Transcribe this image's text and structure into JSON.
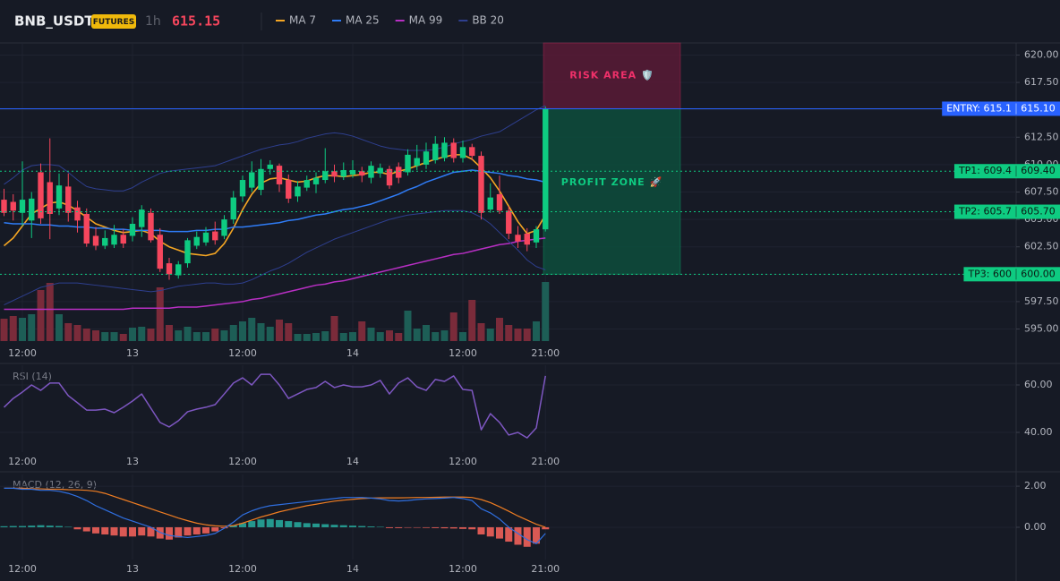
{
  "header": {
    "symbol": "BNB_USDT",
    "badge": "FUTURES",
    "interval": "1h",
    "price": 615.15
  },
  "chart_data": [
    {
      "type": "candlestick",
      "categories": [
        null,
        null,
        "12:00",
        null,
        null,
        null,
        null,
        null,
        null,
        null,
        null,
        null,
        null,
        null,
        "13",
        null,
        null,
        null,
        null,
        null,
        null,
        null,
        null,
        null,
        null,
        null,
        "12:00",
        null,
        null,
        null,
        null,
        null,
        null,
        null,
        null,
        null,
        null,
        null,
        "14",
        null,
        null,
        null,
        null,
        null,
        null,
        null,
        null,
        null,
        null,
        null,
        "12:00",
        null,
        null,
        null,
        null,
        null,
        null,
        null,
        null,
        "21:00"
      ],
      "open": [
        606.8,
        606.6,
        605.6,
        604.9,
        609.3,
        608.4,
        606.0,
        608.0,
        606.1,
        605.5,
        603.5,
        602.6,
        602.7,
        603.6,
        603.5,
        604.3,
        605.6,
        603.6,
        601.0,
        599.9,
        601.0,
        602.6,
        602.9,
        603.9,
        603.5,
        605.0,
        607.1,
        607.9,
        607.7,
        609.6,
        609.9,
        608.6,
        607.1,
        607.9,
        608.2,
        608.6,
        609.4,
        608.9,
        609.1,
        609.4,
        608.8,
        609.2,
        609.6,
        609.8,
        609.3,
        609.9,
        610.0,
        610.4,
        610.6,
        612.0,
        610.6,
        611.6,
        610.8,
        605.9,
        607.3,
        605.8,
        603.6,
        603.7,
        602.9,
        604.1
      ],
      "high": [
        607.8,
        607.3,
        610.3,
        607.5,
        610.1,
        612.4,
        609.2,
        609.2,
        606.7,
        606.0,
        604.3,
        604.0,
        604.5,
        604.1,
        605.2,
        606.3,
        606.0,
        604.2,
        601.5,
        601.2,
        603.3,
        603.9,
        604.3,
        604.8,
        605.4,
        607.6,
        609.0,
        610.3,
        610.5,
        610.4,
        610.1,
        609.1,
        608.5,
        609.0,
        609.3,
        611.5,
        610.0,
        610.2,
        610.4,
        609.8,
        610.3,
        610.1,
        609.9,
        610.2,
        611.4,
        611.8,
        612.0,
        612.6,
        612.5,
        612.4,
        612.2,
        611.9,
        611.2,
        608.3,
        609.0,
        606.2,
        604.4,
        604.2,
        604.4,
        615.3
      ],
      "low": [
        605.3,
        604.9,
        604.4,
        603.3,
        604.6,
        603.2,
        605.4,
        604.8,
        603.8,
        602.5,
        602.2,
        602.3,
        602.4,
        602.4,
        603.0,
        603.4,
        602.9,
        600.2,
        599.5,
        599.6,
        600.6,
        602.3,
        602.6,
        602.7,
        603.2,
        604.6,
        606.6,
        607.5,
        607.2,
        609.1,
        607.5,
        606.5,
        606.6,
        607.6,
        607.4,
        608.3,
        608.4,
        608.6,
        608.8,
        608.4,
        608.3,
        608.8,
        607.8,
        608.3,
        609.0,
        609.5,
        609.6,
        610.1,
        610.3,
        610.2,
        610.2,
        610.4,
        605.0,
        605.6,
        605.5,
        603.2,
        602.4,
        602.1,
        602.4,
        603.9
      ],
      "close": [
        605.6,
        605.8,
        606.8,
        606.9,
        605.1,
        605.5,
        608.1,
        605.6,
        604.9,
        602.8,
        602.6,
        603.3,
        603.6,
        602.8,
        604.6,
        605.9,
        603.1,
        600.5,
        600.0,
        600.9,
        603.1,
        603.4,
        603.8,
        603.1,
        605.0,
        607.0,
        608.6,
        609.3,
        609.6,
        610.0,
        608.2,
        606.9,
        608.0,
        608.6,
        608.8,
        609.4,
        608.9,
        609.5,
        609.5,
        609.0,
        609.9,
        609.7,
        608.1,
        608.8,
        610.9,
        610.6,
        611.2,
        611.9,
        612.0,
        610.6,
        611.6,
        610.8,
        605.6,
        607.0,
        605.8,
        603.7,
        603.0,
        602.7,
        604.1,
        615.1
      ],
      "volume": [
        25,
        28,
        26,
        30,
        57,
        65,
        30,
        20,
        18,
        14,
        12,
        10,
        10,
        8,
        15,
        16,
        14,
        60,
        18,
        12,
        16,
        10,
        10,
        14,
        12,
        18,
        22,
        26,
        20,
        16,
        24,
        20,
        8,
        8,
        9,
        11,
        28,
        9,
        10,
        22,
        15,
        10,
        12,
        9,
        34,
        14,
        18,
        10,
        12,
        32,
        10,
        46,
        20,
        14,
        26,
        18,
        14,
        14,
        22,
        66
      ],
      "up_color": "#0ecb81",
      "down_color": "#f6465d",
      "volume_up_color": "#1d5e56",
      "volume_down_color": "#7a2b3a",
      "overlays": [
        {
          "name": "MA 7",
          "color": "#f5a623",
          "values": [
            602.6,
            603.3,
            604.4,
            605.5,
            606.0,
            606.5,
            606.6,
            606.3,
            605.8,
            605.2,
            604.6,
            604.3,
            604.0,
            603.8,
            603.9,
            604.0,
            603.7,
            603.0,
            602.5,
            602.2,
            601.9,
            601.8,
            601.7,
            601.9,
            602.8,
            604.2,
            605.9,
            607.3,
            608.3,
            608.7,
            608.8,
            608.6,
            608.4,
            608.5,
            608.8,
            609.0,
            609.0,
            608.9,
            609.0,
            609.1,
            609.3,
            609.3,
            609.1,
            609.4,
            609.6,
            609.9,
            610.2,
            610.5,
            610.7,
            610.9,
            610.9,
            610.5,
            609.7,
            608.8,
            607.6,
            606.2,
            604.8,
            603.7,
            604.0,
            605.4
          ]
        },
        {
          "name": "MA 25",
          "color": "#2f7cf6",
          "values": [
            604.7,
            604.6,
            604.6,
            604.6,
            604.5,
            604.5,
            604.4,
            604.4,
            604.3,
            604.3,
            604.2,
            604.2,
            604.1,
            604.1,
            604.0,
            604.0,
            604.0,
            604.0,
            603.9,
            603.9,
            603.9,
            604.0,
            604.0,
            604.1,
            604.1,
            604.3,
            604.3,
            604.4,
            604.5,
            604.6,
            604.7,
            604.9,
            605.0,
            605.2,
            605.4,
            605.5,
            605.7,
            605.9,
            606.0,
            606.2,
            606.4,
            606.7,
            607.0,
            607.3,
            607.7,
            608.0,
            608.4,
            608.7,
            609.0,
            609.3,
            609.4,
            609.5,
            609.4,
            609.3,
            609.2,
            609.0,
            608.9,
            608.7,
            608.6,
            608.4
          ]
        },
        {
          "name": "MA 99",
          "color": "#b82fc4",
          "values": [
            596.8,
            596.8,
            596.8,
            596.8,
            596.8,
            596.8,
            596.8,
            596.8,
            596.8,
            596.8,
            596.8,
            596.8,
            596.8,
            596.8,
            596.9,
            596.9,
            596.9,
            596.9,
            596.9,
            597.0,
            597.0,
            597.0,
            597.1,
            597.2,
            597.3,
            597.4,
            597.5,
            597.7,
            597.8,
            598.0,
            598.2,
            598.4,
            598.6,
            598.8,
            599.0,
            599.1,
            599.3,
            599.4,
            599.6,
            599.8,
            600.0,
            600.2,
            600.4,
            600.6,
            600.8,
            601.0,
            601.2,
            601.4,
            601.6,
            601.8,
            601.9,
            602.1,
            602.3,
            602.5,
            602.7,
            602.8,
            603.0,
            603.1,
            603.2,
            603.3
          ]
        },
        {
          "name": "BB 20",
          "color": "#2e3f8f",
          "upper": [
            608.2,
            608.8,
            609.5,
            609.9,
            610.0,
            610.0,
            609.9,
            609.3,
            608.6,
            608.0,
            607.8,
            607.7,
            607.6,
            607.6,
            607.9,
            608.4,
            608.8,
            609.2,
            609.4,
            609.5,
            609.6,
            609.7,
            609.8,
            609.9,
            610.2,
            610.5,
            610.8,
            611.1,
            611.4,
            611.6,
            611.8,
            611.9,
            612.1,
            612.4,
            612.6,
            612.8,
            612.9,
            612.8,
            612.6,
            612.3,
            612.0,
            611.7,
            611.5,
            611.4,
            611.3,
            611.3,
            611.3,
            611.4,
            611.6,
            611.9,
            612.1,
            612.3,
            612.6,
            612.8,
            613.0,
            613.5,
            614.0,
            614.5,
            615.0,
            615.4
          ],
          "lower": [
            597.2,
            597.6,
            598.0,
            598.4,
            598.8,
            599.0,
            599.2,
            599.2,
            599.2,
            599.1,
            599.0,
            598.9,
            598.8,
            598.7,
            598.6,
            598.5,
            598.4,
            598.5,
            598.7,
            598.9,
            599.0,
            599.1,
            599.2,
            599.2,
            599.1,
            599.1,
            599.2,
            599.5,
            599.9,
            600.3,
            600.6,
            601.0,
            601.5,
            602.0,
            602.4,
            602.8,
            603.2,
            603.5,
            603.8,
            604.1,
            604.4,
            604.7,
            605.0,
            605.2,
            605.4,
            605.5,
            605.6,
            605.7,
            605.8,
            605.8,
            605.8,
            605.6,
            605.2,
            604.6,
            603.8,
            603.0,
            602.2,
            601.3,
            600.7,
            600.4
          ]
        }
      ],
      "levels": [
        {
          "value": 615.1,
          "label": "ENTRY: 615.1",
          "price_label": "615.10",
          "color": "#2962ff",
          "style": "solid"
        },
        {
          "value": 609.4,
          "label": "TP1: 609.4",
          "price_label": "609.40",
          "color": "#0ecb81",
          "style": "dotted"
        },
        {
          "value": 605.7,
          "label": "TP2: 605.7",
          "price_label": "605.70",
          "color": "#0ecb81",
          "style": "dotted"
        },
        {
          "value": 600,
          "label": "TP3: 600",
          "price_label": "600.00",
          "color": "#0ecb81",
          "style": "dotted"
        }
      ],
      "zones": [
        {
          "label": "RISK AREA 🛡️",
          "range": [
            615.1,
            621.1
          ],
          "color": "#5a1a36",
          "text_color": "#f0306a"
        },
        {
          "label": "PROFIT ZONE 🚀",
          "range": [
            600,
            615.1
          ],
          "color": "#0d4d3c",
          "text_color": "#0ecb81"
        }
      ],
      "ylim": [
        593.9,
        621.1
      ],
      "yticks": [
        {
          "value": 620,
          "label": "620.00"
        },
        {
          "value": 617.5,
          "label": "617.50"
        },
        {
          "value": 615,
          "label": "615.00"
        },
        {
          "value": 612.5,
          "label": "612.50"
        },
        {
          "value": 610,
          "label": "610.00"
        },
        {
          "value": 607.5,
          "label": "607.50"
        },
        {
          "value": 605,
          "label": "605.00"
        },
        {
          "value": 602.5,
          "label": "602.50"
        },
        {
          "value": 600,
          "label": "600.00"
        },
        {
          "value": 597.5,
          "label": "597.50"
        },
        {
          "value": 595,
          "label": "595.00"
        }
      ],
      "grid": true
    },
    {
      "type": "line",
      "label": "RSI (14)",
      "color": "#7e57c2",
      "categories": [
        null,
        null,
        "12:00",
        null,
        null,
        null,
        null,
        null,
        null,
        null,
        null,
        null,
        null,
        null,
        "13",
        null,
        null,
        null,
        null,
        null,
        null,
        null,
        null,
        null,
        null,
        null,
        "12:00",
        null,
        null,
        null,
        null,
        null,
        null,
        null,
        null,
        null,
        null,
        null,
        "14",
        null,
        null,
        null,
        null,
        null,
        null,
        null,
        null,
        null,
        null,
        null,
        "12:00",
        null,
        null,
        null,
        null,
        null,
        null,
        null,
        null,
        "21:00"
      ],
      "values": [
        50.6,
        54.3,
        57.0,
        60.0,
        57.7,
        60.8,
        60.8,
        55.5,
        52.5,
        49.4,
        49.4,
        49.8,
        48.3,
        50.6,
        53.2,
        56.2,
        50.2,
        44.2,
        42.3,
        44.9,
        48.7,
        49.8,
        50.6,
        51.7,
        56.2,
        60.8,
        63.0,
        60.0,
        64.5,
        64.5,
        60.0,
        54.3,
        56.2,
        58.1,
        58.9,
        61.5,
        58.9,
        60.0,
        59.2,
        59.2,
        60.0,
        61.9,
        56.2,
        60.8,
        63.0,
        59.2,
        57.7,
        62.3,
        61.5,
        63.8,
        58.1,
        57.7,
        41.1,
        47.9,
        44.2,
        38.9,
        40.0,
        37.7,
        41.9,
        63.8
      ],
      "ylim": [
        31.7,
        68.3
      ],
      "yticks": [
        {
          "value": 60,
          "label": "60.00"
        },
        {
          "value": 40,
          "label": "40.00"
        }
      ],
      "grid": true
    },
    {
      "type": "macd",
      "label": "MACD (12, 26, 9)",
      "categories": [
        null,
        null,
        "12:00",
        null,
        null,
        null,
        null,
        null,
        null,
        null,
        null,
        null,
        null,
        null,
        "13",
        null,
        null,
        null,
        null,
        null,
        null,
        null,
        null,
        null,
        null,
        null,
        "12:00",
        null,
        null,
        null,
        null,
        null,
        null,
        null,
        null,
        null,
        null,
        null,
        "14",
        null,
        null,
        null,
        null,
        null,
        null,
        null,
        null,
        null,
        null,
        null,
        "12:00",
        null,
        null,
        null,
        null,
        null,
        null,
        null,
        null,
        "21:00"
      ],
      "histogram": [
        0.05,
        0.06,
        0.06,
        0.08,
        0.1,
        0.08,
        0.06,
        0.02,
        -0.1,
        -0.2,
        -0.3,
        -0.35,
        -0.4,
        -0.45,
        -0.45,
        -0.4,
        -0.45,
        -0.55,
        -0.6,
        -0.5,
        -0.4,
        -0.35,
        -0.3,
        -0.2,
        -0.05,
        0.1,
        0.2,
        0.3,
        0.38,
        0.4,
        0.35,
        0.3,
        0.25,
        0.2,
        0.18,
        0.15,
        0.12,
        0.1,
        0.08,
        0.06,
        0.04,
        0.02,
        -0.04,
        -0.04,
        -0.02,
        -0.02,
        -0.03,
        -0.04,
        -0.05,
        -0.06,
        -0.08,
        -0.1,
        -0.35,
        -0.45,
        -0.55,
        -0.7,
        -0.85,
        -0.95,
        -0.8,
        -0.1
      ],
      "macd": [
        1.9,
        1.9,
        1.85,
        1.85,
        1.8,
        1.8,
        1.75,
        1.65,
        1.5,
        1.3,
        1.05,
        0.85,
        0.65,
        0.45,
        0.3,
        0.15,
        0.0,
        -0.25,
        -0.4,
        -0.45,
        -0.5,
        -0.45,
        -0.4,
        -0.3,
        -0.05,
        0.25,
        0.6,
        0.8,
        0.95,
        1.05,
        1.1,
        1.15,
        1.2,
        1.25,
        1.3,
        1.35,
        1.4,
        1.45,
        1.45,
        1.45,
        1.42,
        1.38,
        1.3,
        1.28,
        1.3,
        1.35,
        1.38,
        1.4,
        1.42,
        1.45,
        1.4,
        1.3,
        0.9,
        0.7,
        0.4,
        0.0,
        -0.3,
        -0.6,
        -0.8,
        -0.3
      ],
      "signal": [
        1.9,
        1.9,
        1.9,
        1.88,
        1.87,
        1.85,
        1.85,
        1.83,
        1.82,
        1.8,
        1.75,
        1.65,
        1.5,
        1.35,
        1.2,
        1.05,
        0.9,
        0.75,
        0.6,
        0.45,
        0.32,
        0.2,
        0.12,
        0.07,
        0.05,
        0.08,
        0.2,
        0.35,
        0.5,
        0.62,
        0.75,
        0.85,
        0.95,
        1.05,
        1.12,
        1.2,
        1.27,
        1.32,
        1.36,
        1.4,
        1.42,
        1.43,
        1.43,
        1.43,
        1.44,
        1.45,
        1.45,
        1.46,
        1.47,
        1.47,
        1.47,
        1.45,
        1.35,
        1.2,
        1.0,
        0.78,
        0.55,
        0.35,
        0.15,
        0.0
      ],
      "macd_color": "#2f6fe0",
      "signal_color": "#ef7d22",
      "up_color": "#26a69a",
      "down_color": "#f0605a",
      "ylim": [
        -1.57,
        2.57
      ],
      "yticks": [
        {
          "value": 2,
          "label": "2.00"
        },
        {
          "value": 0,
          "label": "0.00"
        }
      ],
      "grid": true
    }
  ]
}
